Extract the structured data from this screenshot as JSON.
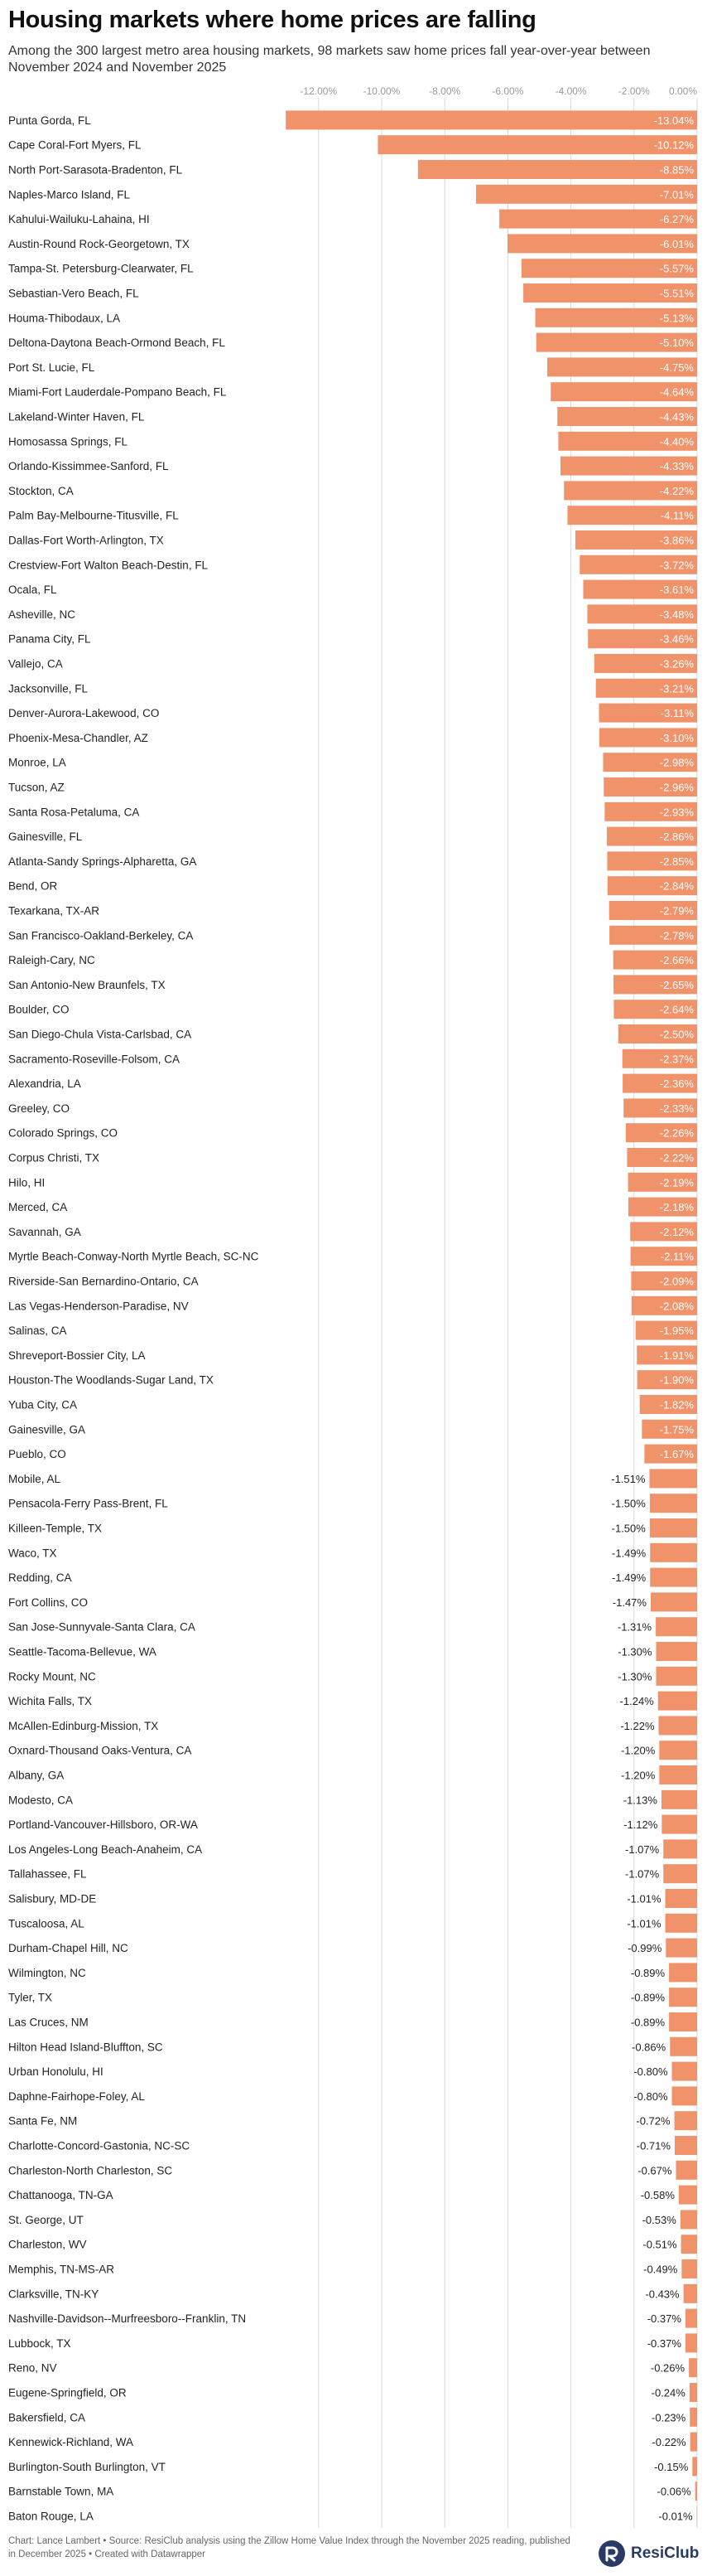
{
  "header": {
    "title": "Housing markets where home prices are falling",
    "subtitle": "Among the 300 largest metro area housing markets, 98 markets saw home prices fall year-over-year between November 2024 and November 2025"
  },
  "footer": {
    "note": "Chart: Lance Lambert • Source: ResiClub analysis using the Zillow Home Value Index through the November 2025 reading, published in December 2025 • Created with Datawrapper",
    "logo_text": "ResiClub"
  },
  "colors": {
    "bar": "#f0936a",
    "label_inside": "#ffffff",
    "label_outside": "#222222",
    "grid": "#d9d9d9",
    "tick": "#999999",
    "logo": "#2a3a66"
  },
  "chart_data": {
    "type": "bar",
    "orientation": "horizontal",
    "title": "Housing markets where home prices are falling",
    "xlim": [
      -13.5,
      0
    ],
    "x_ticks": [
      -12,
      -10,
      -8,
      -6,
      -4,
      -2,
      0
    ],
    "x_tick_labels": [
      "-12.00%",
      "-10.00%",
      "-8.00%",
      "-6.00%",
      "-4.00%",
      "-2.00%",
      "0.00%"
    ],
    "grid": true,
    "unit": "%",
    "categories": [
      "Punta Gorda, FL",
      "Cape Coral-Fort Myers, FL",
      "North Port-Sarasota-Bradenton, FL",
      "Naples-Marco Island, FL",
      "Kahului-Wailuku-Lahaina, HI",
      "Austin-Round Rock-Georgetown, TX",
      "Tampa-St. Petersburg-Clearwater, FL",
      "Sebastian-Vero Beach, FL",
      "Houma-Thibodaux, LA",
      "Deltona-Daytona Beach-Ormond Beach, FL",
      "Port St. Lucie, FL",
      "Miami-Fort Lauderdale-Pompano Beach, FL",
      "Lakeland-Winter Haven, FL",
      "Homosassa Springs, FL",
      "Orlando-Kissimmee-Sanford, FL",
      "Stockton, CA",
      "Palm Bay-Melbourne-Titusville, FL",
      "Dallas-Fort Worth-Arlington, TX",
      "Crestview-Fort Walton Beach-Destin, FL",
      "Ocala, FL",
      "Asheville, NC",
      "Panama City, FL",
      "Vallejo, CA",
      "Jacksonville, FL",
      "Denver-Aurora-Lakewood, CO",
      "Phoenix-Mesa-Chandler, AZ",
      "Monroe, LA",
      "Tucson, AZ",
      "Santa Rosa-Petaluma, CA",
      "Gainesville, FL",
      "Atlanta-Sandy Springs-Alpharetta, GA",
      "Bend, OR",
      "Texarkana, TX-AR",
      "San Francisco-Oakland-Berkeley, CA",
      "Raleigh-Cary, NC",
      "San Antonio-New Braunfels, TX",
      "Boulder, CO",
      "San Diego-Chula Vista-Carlsbad, CA",
      "Sacramento-Roseville-Folsom, CA",
      "Alexandria, LA",
      "Greeley, CO",
      "Colorado Springs, CO",
      "Corpus Christi, TX",
      "Hilo, HI",
      "Merced, CA",
      "Savannah, GA",
      "Myrtle Beach-Conway-North Myrtle Beach, SC-NC",
      "Riverside-San Bernardino-Ontario, CA",
      "Las Vegas-Henderson-Paradise, NV",
      "Salinas, CA",
      "Shreveport-Bossier City, LA",
      "Houston-The Woodlands-Sugar Land, TX",
      "Yuba City, CA",
      "Gainesville, GA",
      "Pueblo, CO",
      "Mobile, AL",
      "Pensacola-Ferry Pass-Brent, FL",
      "Killeen-Temple, TX",
      "Waco, TX",
      "Redding, CA",
      "Fort Collins, CO",
      "San Jose-Sunnyvale-Santa Clara, CA",
      "Seattle-Tacoma-Bellevue, WA",
      "Rocky Mount, NC",
      "Wichita Falls, TX",
      "McAllen-Edinburg-Mission, TX",
      "Oxnard-Thousand Oaks-Ventura, CA",
      "Albany, GA",
      "Modesto, CA",
      "Portland-Vancouver-Hillsboro, OR-WA",
      "Los Angeles-Long Beach-Anaheim, CA",
      "Tallahassee, FL",
      "Salisbury, MD-DE",
      "Tuscaloosa, AL",
      "Durham-Chapel Hill, NC",
      "Wilmington, NC",
      "Tyler, TX",
      "Las Cruces, NM",
      "Hilton Head Island-Bluffton, SC",
      "Urban Honolulu, HI",
      "Daphne-Fairhope-Foley, AL",
      "Santa Fe, NM",
      "Charlotte-Concord-Gastonia, NC-SC",
      "Charleston-North Charleston, SC",
      "Chattanooga, TN-GA",
      "St. George, UT",
      "Charleston, WV",
      "Memphis, TN-MS-AR",
      "Clarksville, TN-KY",
      "Nashville-Davidson--Murfreesboro--Franklin, TN",
      "Lubbock, TX",
      "Reno, NV",
      "Eugene-Springfield, OR",
      "Bakersfield, CA",
      "Kennewick-Richland, WA",
      "Burlington-South Burlington, VT",
      "Barnstable Town, MA",
      "Baton Rouge, LA"
    ],
    "values": [
      -13.04,
      -10.12,
      -8.85,
      -7.01,
      -6.27,
      -6.01,
      -5.57,
      -5.51,
      -5.13,
      -5.1,
      -4.75,
      -4.64,
      -4.43,
      -4.4,
      -4.33,
      -4.22,
      -4.11,
      -3.86,
      -3.72,
      -3.61,
      -3.48,
      -3.46,
      -3.26,
      -3.21,
      -3.11,
      -3.1,
      -2.98,
      -2.96,
      -2.93,
      -2.86,
      -2.85,
      -2.84,
      -2.79,
      -2.78,
      -2.66,
      -2.65,
      -2.64,
      -2.5,
      -2.37,
      -2.36,
      -2.33,
      -2.26,
      -2.22,
      -2.19,
      -2.18,
      -2.12,
      -2.11,
      -2.09,
      -2.08,
      -1.95,
      -1.91,
      -1.9,
      -1.82,
      -1.75,
      -1.67,
      -1.51,
      -1.5,
      -1.5,
      -1.49,
      -1.49,
      -1.47,
      -1.31,
      -1.3,
      -1.3,
      -1.24,
      -1.22,
      -1.2,
      -1.2,
      -1.13,
      -1.12,
      -1.07,
      -1.07,
      -1.01,
      -1.01,
      -0.99,
      -0.89,
      -0.89,
      -0.89,
      -0.86,
      -0.8,
      -0.8,
      -0.72,
      -0.71,
      -0.67,
      -0.58,
      -0.53,
      -0.51,
      -0.49,
      -0.43,
      -0.37,
      -0.37,
      -0.26,
      -0.24,
      -0.23,
      -0.22,
      -0.15,
      -0.06,
      -0.01
    ],
    "value_labels": [
      "-13.04%",
      "-10.12%",
      "-8.85%",
      "-7.01%",
      "-6.27%",
      "-6.01%",
      "-5.57%",
      "-5.51%",
      "-5.13%",
      "-5.10%",
      "-4.75%",
      "-4.64%",
      "-4.43%",
      "-4.40%",
      "-4.33%",
      "-4.22%",
      "-4.11%",
      "-3.86%",
      "-3.72%",
      "-3.61%",
      "-3.48%",
      "-3.46%",
      "-3.26%",
      "-3.21%",
      "-3.11%",
      "-3.10%",
      "-2.98%",
      "-2.96%",
      "-2.93%",
      "-2.86%",
      "-2.85%",
      "-2.84%",
      "-2.79%",
      "-2.78%",
      "-2.66%",
      "-2.65%",
      "-2.64%",
      "-2.50%",
      "-2.37%",
      "-2.36%",
      "-2.33%",
      "-2.26%",
      "-2.22%",
      "-2.19%",
      "-2.18%",
      "-2.12%",
      "-2.11%",
      "-2.09%",
      "-2.08%",
      "-1.95%",
      "-1.91%",
      "-1.90%",
      "-1.82%",
      "-1.75%",
      "-1.67%",
      "-1.51%",
      "-1.50%",
      "-1.50%",
      "-1.49%",
      "-1.49%",
      "-1.47%",
      "-1.31%",
      "-1.30%",
      "-1.30%",
      "-1.24%",
      "-1.22%",
      "-1.20%",
      "-1.20%",
      "-1.13%",
      "-1.12%",
      "-1.07%",
      "-1.07%",
      "-1.01%",
      "-1.01%",
      "-0.99%",
      "-0.89%",
      "-0.89%",
      "-0.89%",
      "-0.86%",
      "-0.80%",
      "-0.80%",
      "-0.72%",
      "-0.71%",
      "-0.67%",
      "-0.58%",
      "-0.53%",
      "-0.51%",
      "-0.49%",
      "-0.43%",
      "-0.37%",
      "-0.37%",
      "-0.26%",
      "-0.24%",
      "-0.23%",
      "-0.22%",
      "-0.15%",
      "-0.06%",
      "-0.01%"
    ]
  }
}
